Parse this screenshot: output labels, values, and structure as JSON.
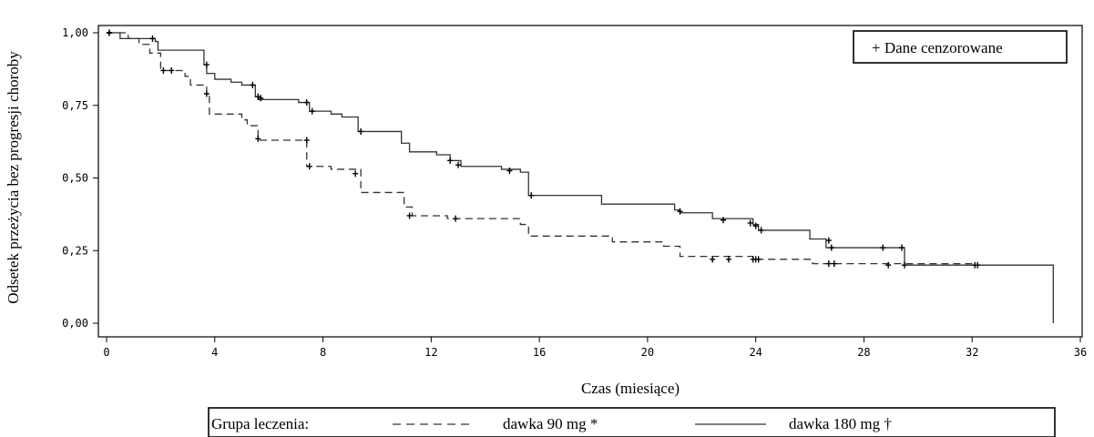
{
  "chart_data": {
    "type": "line",
    "xlabel": "Czas (miesiące)",
    "ylabel": "Odsetek przeżycia bez progresji choroby",
    "xlim": [
      0,
      36
    ],
    "ylim": [
      0,
      1
    ],
    "xticks": [
      0,
      4,
      8,
      12,
      16,
      20,
      24,
      28,
      32,
      36
    ],
    "xtick_labels": [
      "0",
      "4",
      "8",
      "12",
      "16",
      "20",
      "24",
      "28",
      "32",
      "36"
    ],
    "yticks": [
      0,
      0.25,
      0.5,
      0.75,
      1.0
    ],
    "ytick_labels": [
      "0,00",
      "0,25",
      "0,50",
      "0,75",
      "1,00"
    ],
    "censor_legend": "+ Dane cenzorowane",
    "group_legend_title": "Grupa leczenia:",
    "series": [
      {
        "name": "dawka 90 mg *",
        "style": "dashed",
        "color": "#333333",
        "steps": [
          [
            0,
            1.0
          ],
          [
            0.8,
            0.98
          ],
          [
            1.2,
            0.96
          ],
          [
            1.6,
            0.93
          ],
          [
            2.0,
            0.87
          ],
          [
            2.9,
            0.85
          ],
          [
            3.1,
            0.82
          ],
          [
            3.7,
            0.79
          ],
          [
            3.8,
            0.72
          ],
          [
            5.0,
            0.7
          ],
          [
            5.2,
            0.68
          ],
          [
            5.6,
            0.63
          ],
          [
            6.1,
            0.63
          ],
          [
            7.4,
            0.54
          ],
          [
            8.3,
            0.53
          ],
          [
            9.4,
            0.45
          ],
          [
            11.0,
            0.4
          ],
          [
            11.3,
            0.37
          ],
          [
            12.6,
            0.36
          ],
          [
            15.3,
            0.34
          ],
          [
            15.6,
            0.3
          ],
          [
            18.7,
            0.28
          ],
          [
            20.6,
            0.265
          ],
          [
            21.2,
            0.23
          ],
          [
            23.9,
            0.22
          ],
          [
            26.1,
            0.205
          ],
          [
            32.2,
            0.2
          ]
        ],
        "end": 32.2,
        "censored": [
          [
            0.1,
            1.0
          ],
          [
            2.1,
            0.87
          ],
          [
            2.4,
            0.87
          ],
          [
            3.7,
            0.79
          ],
          [
            5.6,
            0.635
          ],
          [
            7.4,
            0.63
          ],
          [
            7.5,
            0.54
          ],
          [
            9.2,
            0.515
          ],
          [
            11.2,
            0.37
          ],
          [
            12.9,
            0.36
          ],
          [
            22.4,
            0.22
          ],
          [
            23.0,
            0.22
          ],
          [
            23.9,
            0.22
          ],
          [
            24.0,
            0.22
          ],
          [
            24.1,
            0.22
          ],
          [
            26.7,
            0.205
          ],
          [
            26.9,
            0.205
          ],
          [
            28.9,
            0.2
          ],
          [
            29.5,
            0.2
          ],
          [
            32.1,
            0.2
          ],
          [
            32.2,
            0.2
          ]
        ]
      },
      {
        "name": "dawka 180 mg †",
        "style": "solid",
        "color": "#333333",
        "steps": [
          [
            0,
            1.0
          ],
          [
            0.5,
            0.98
          ],
          [
            1.8,
            0.97
          ],
          [
            1.9,
            0.94
          ],
          [
            3.6,
            0.89
          ],
          [
            3.7,
            0.86
          ],
          [
            4.0,
            0.84
          ],
          [
            4.6,
            0.83
          ],
          [
            5.0,
            0.82
          ],
          [
            5.5,
            0.78
          ],
          [
            5.6,
            0.77
          ],
          [
            7.1,
            0.76
          ],
          [
            7.5,
            0.73
          ],
          [
            8.3,
            0.72
          ],
          [
            8.7,
            0.71
          ],
          [
            9.3,
            0.66
          ],
          [
            10.9,
            0.62
          ],
          [
            11.2,
            0.59
          ],
          [
            12.2,
            0.58
          ],
          [
            12.7,
            0.56
          ],
          [
            13.1,
            0.54
          ],
          [
            14.6,
            0.53
          ],
          [
            15.3,
            0.52
          ],
          [
            15.6,
            0.44
          ],
          [
            18.3,
            0.41
          ],
          [
            21.0,
            0.39
          ],
          [
            21.2,
            0.38
          ],
          [
            22.4,
            0.36
          ],
          [
            23.9,
            0.34
          ],
          [
            24.1,
            0.32
          ],
          [
            26.0,
            0.29
          ],
          [
            26.6,
            0.26
          ],
          [
            29.5,
            0.2
          ],
          [
            35.0,
            0.0
          ]
        ],
        "end": 35.0,
        "censored": [
          [
            0.1,
            1.0
          ],
          [
            1.7,
            0.98
          ],
          [
            3.7,
            0.89
          ],
          [
            5.4,
            0.82
          ],
          [
            5.6,
            0.78
          ],
          [
            5.7,
            0.775
          ],
          [
            7.4,
            0.76
          ],
          [
            7.6,
            0.73
          ],
          [
            9.4,
            0.66
          ],
          [
            12.7,
            0.56
          ],
          [
            13.0,
            0.545
          ],
          [
            14.9,
            0.525
          ],
          [
            15.7,
            0.44
          ],
          [
            21.2,
            0.385
          ],
          [
            22.8,
            0.355
          ],
          [
            23.8,
            0.345
          ],
          [
            24.0,
            0.335
          ],
          [
            24.2,
            0.32
          ],
          [
            26.7,
            0.285
          ],
          [
            26.8,
            0.26
          ],
          [
            28.7,
            0.26
          ],
          [
            29.4,
            0.26
          ]
        ]
      }
    ]
  }
}
